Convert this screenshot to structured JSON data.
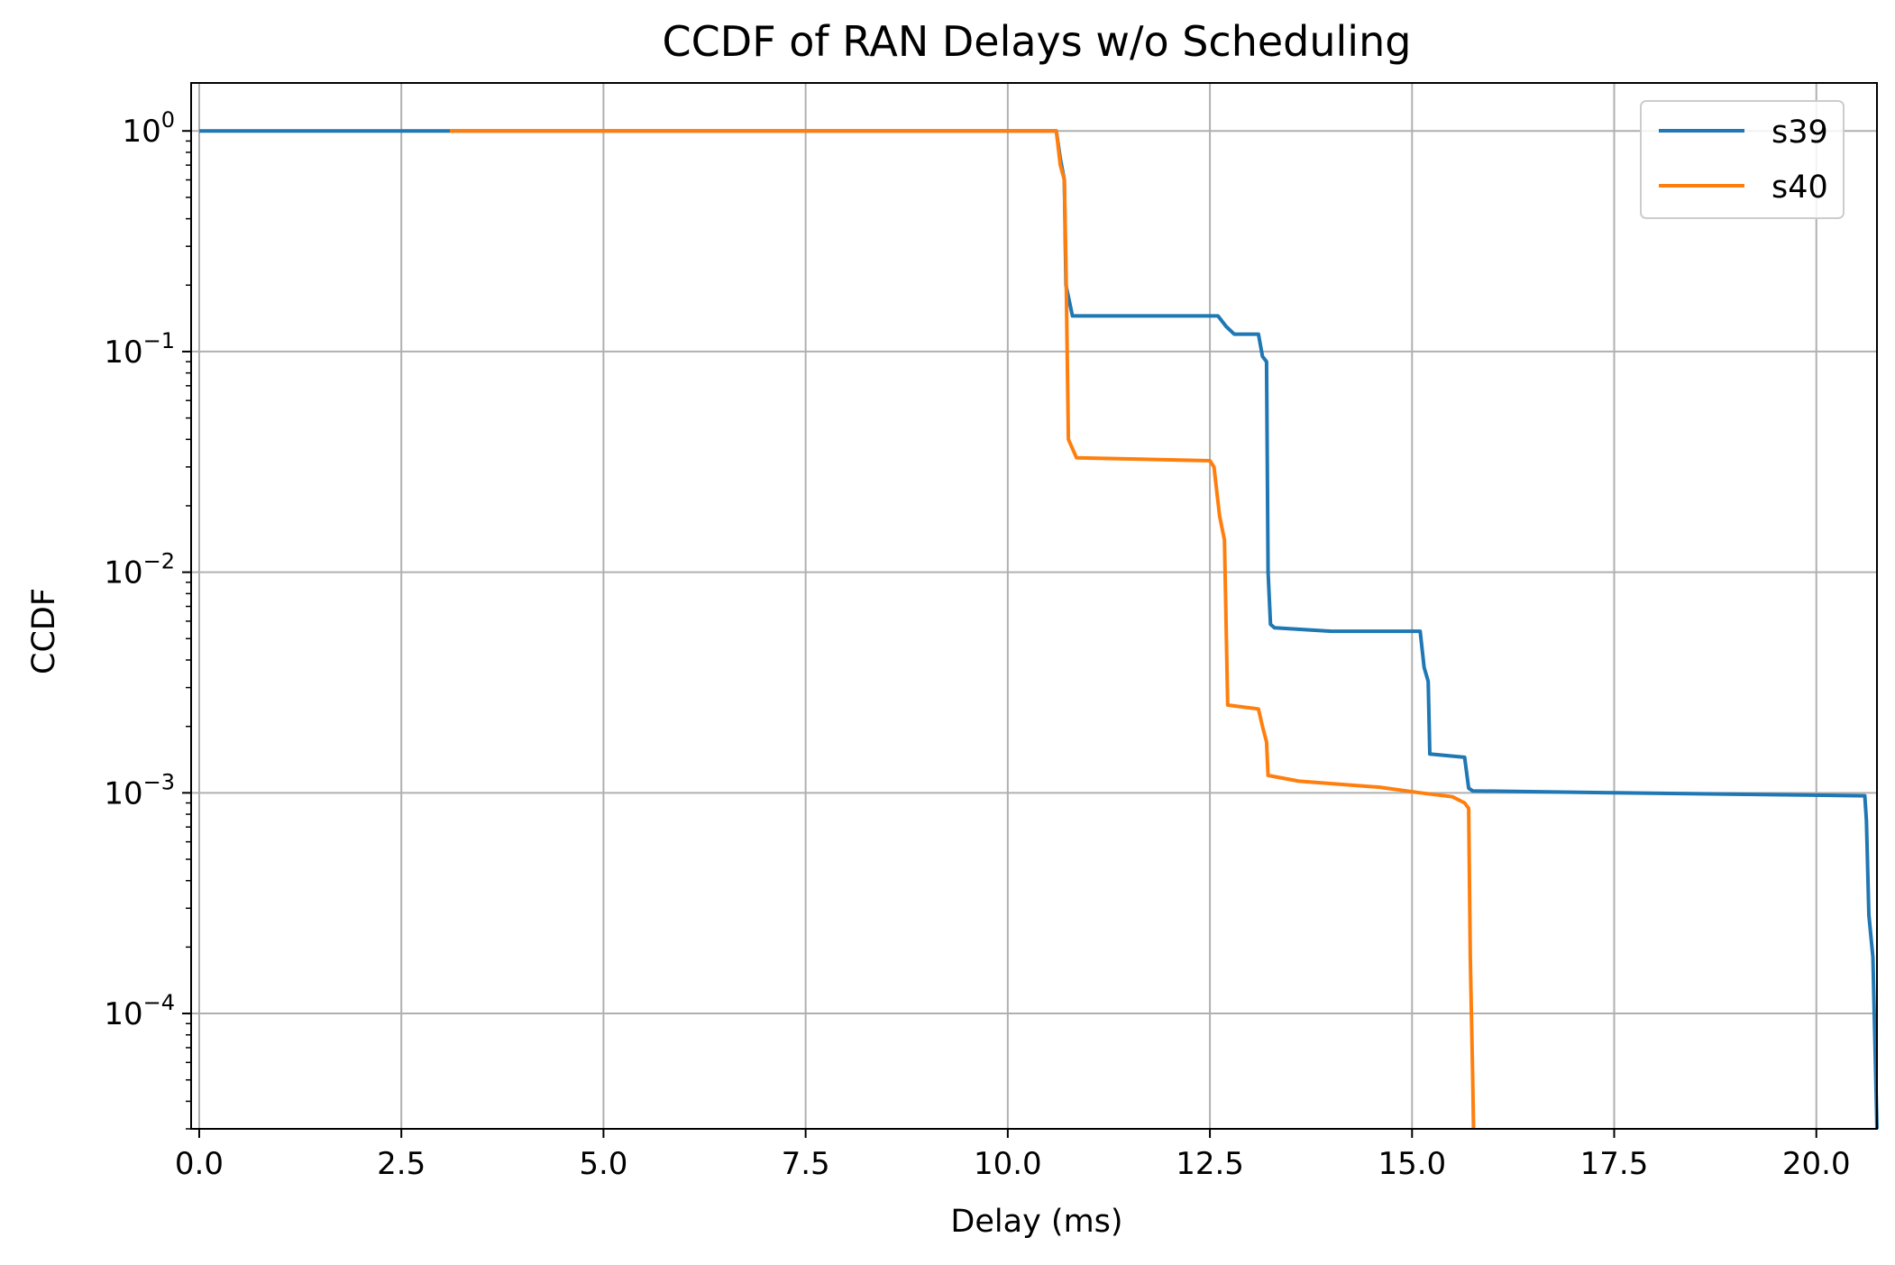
{
  "chart_data": {
    "type": "line",
    "title": "CCDF of RAN Delays w/o Scheduling",
    "xlabel": "Delay (ms)",
    "ylabel": "CCDF",
    "xlim": [
      -0.1,
      20.75
    ],
    "ylim": [
      3e-05,
      1.65
    ],
    "yscale": "log",
    "grid": true,
    "legend_position": "top-right",
    "xticks": [
      {
        "value": 0.0,
        "label": "0.0"
      },
      {
        "value": 2.5,
        "label": "2.5"
      },
      {
        "value": 5.0,
        "label": "5.0"
      },
      {
        "value": 7.5,
        "label": "7.5"
      },
      {
        "value": 10.0,
        "label": "10.0"
      },
      {
        "value": 12.5,
        "label": "12.5"
      },
      {
        "value": 15.0,
        "label": "15.0"
      },
      {
        "value": 17.5,
        "label": "17.5"
      },
      {
        "value": 20.0,
        "label": "20.0"
      }
    ],
    "yticks": [
      {
        "value": 1,
        "base": "10",
        "exp": "0"
      },
      {
        "value": 0.1,
        "base": "10",
        "exp": "−1"
      },
      {
        "value": 0.01,
        "base": "10",
        "exp": "−2"
      },
      {
        "value": 0.001,
        "base": "10",
        "exp": "−3"
      },
      {
        "value": 0.0001,
        "base": "10",
        "exp": "−4"
      }
    ],
    "series": [
      {
        "name": "s39",
        "color": "#1f77b4",
        "points": [
          [
            0.0,
            1.0
          ],
          [
            10.6,
            1.0
          ],
          [
            10.65,
            0.75
          ],
          [
            10.7,
            0.6
          ],
          [
            10.72,
            0.2
          ],
          [
            10.8,
            0.145
          ],
          [
            12.6,
            0.145
          ],
          [
            12.7,
            0.13
          ],
          [
            12.8,
            0.12
          ],
          [
            13.1,
            0.12
          ],
          [
            13.15,
            0.095
          ],
          [
            13.2,
            0.09
          ],
          [
            13.22,
            0.01
          ],
          [
            13.25,
            0.0058
          ],
          [
            13.3,
            0.0056
          ],
          [
            14.0,
            0.0054
          ],
          [
            15.1,
            0.0054
          ],
          [
            15.15,
            0.0037
          ],
          [
            15.2,
            0.0032
          ],
          [
            15.22,
            0.0015
          ],
          [
            15.65,
            0.00145
          ],
          [
            15.7,
            0.00105
          ],
          [
            15.75,
            0.00102
          ],
          [
            17.5,
            0.001
          ],
          [
            20.6,
            0.00097
          ],
          [
            20.62,
            0.00075
          ],
          [
            20.65,
            0.00028
          ],
          [
            20.7,
            0.00018
          ],
          [
            20.75,
            3e-05
          ]
        ]
      },
      {
        "name": "s40",
        "color": "#ff7f0e",
        "points": [
          [
            3.1,
            1.0
          ],
          [
            10.6,
            1.0
          ],
          [
            10.65,
            0.7
          ],
          [
            10.7,
            0.6
          ],
          [
            10.72,
            0.25
          ],
          [
            10.75,
            0.04
          ],
          [
            10.85,
            0.033
          ],
          [
            12.5,
            0.032
          ],
          [
            12.55,
            0.03
          ],
          [
            12.62,
            0.018
          ],
          [
            12.68,
            0.014
          ],
          [
            12.72,
            0.0025
          ],
          [
            13.1,
            0.0024
          ],
          [
            13.15,
            0.002
          ],
          [
            13.2,
            0.0017
          ],
          [
            13.22,
            0.0012
          ],
          [
            13.6,
            0.00113
          ],
          [
            14.6,
            0.00106
          ],
          [
            15.1,
            0.001
          ],
          [
            15.5,
            0.00096
          ],
          [
            15.65,
            0.0009
          ],
          [
            15.7,
            0.00085
          ],
          [
            15.72,
            0.00018
          ],
          [
            15.75,
            5e-05
          ],
          [
            15.76,
            3e-05
          ]
        ]
      }
    ]
  }
}
